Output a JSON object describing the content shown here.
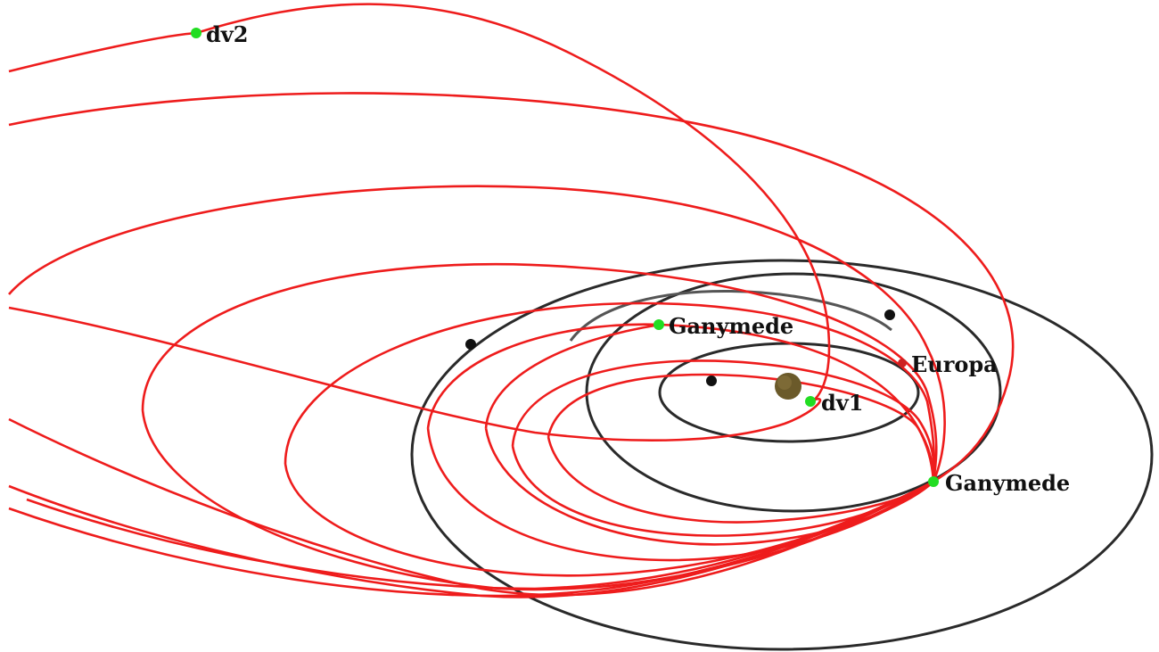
{
  "labels": {
    "dv2": "dv2",
    "ganymede_top": "Ganymede",
    "europa": "Europa",
    "dv1": "dv1",
    "ganymede_bottom": "Ganymede"
  },
  "colors": {
    "trajectory": "#ee1c1c",
    "moon_orbit": "#2a2a2a",
    "event_marker": "#22dd22",
    "jupiter": "#6b5a2a",
    "background": "#ffffff"
  }
}
